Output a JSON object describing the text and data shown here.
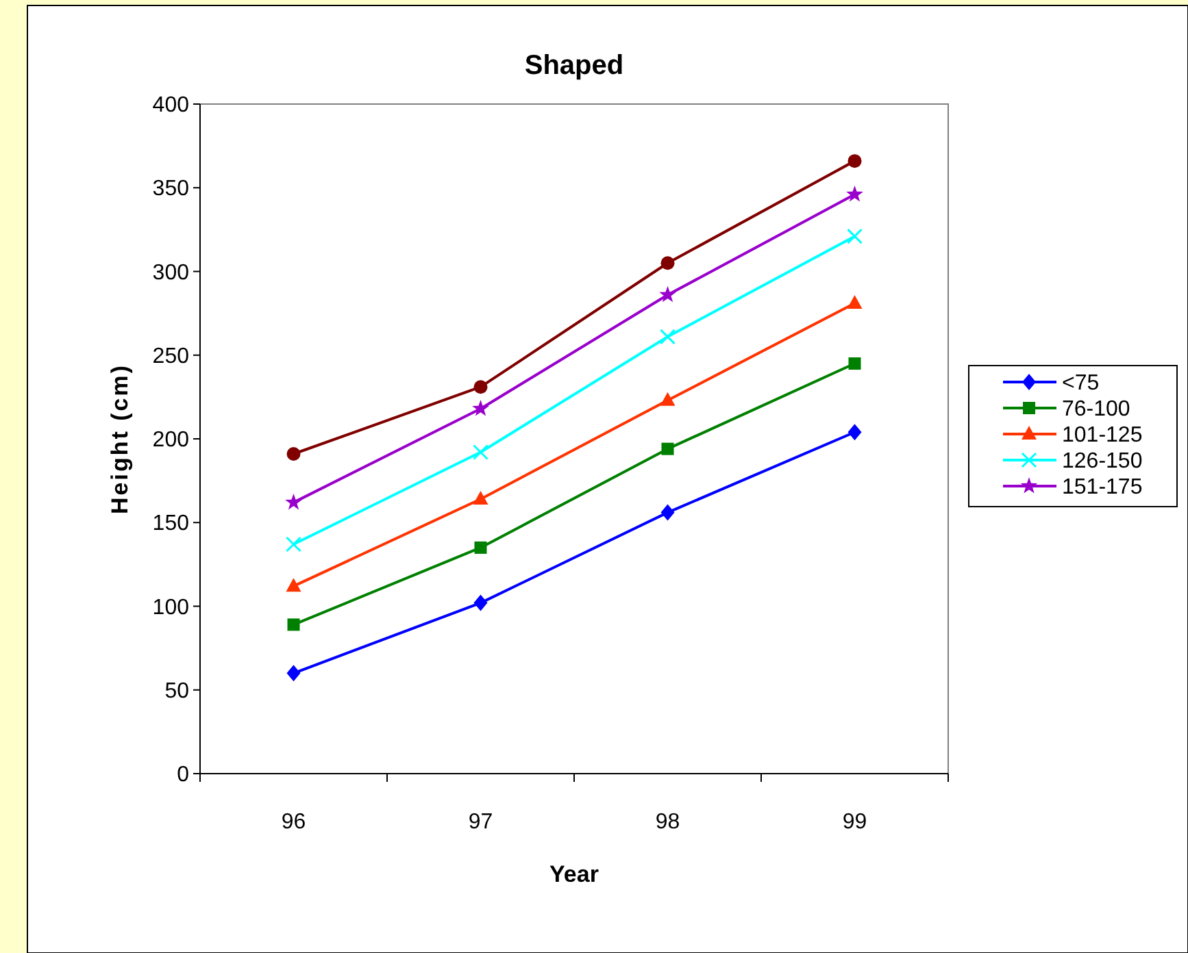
{
  "chart_data": {
    "type": "line",
    "title": "Shaped",
    "xlabel": "Year",
    "ylabel": "Height (cm)",
    "categories": [
      "96",
      "97",
      "98",
      "99"
    ],
    "ylim": [
      0,
      400
    ],
    "yticks": [
      0,
      50,
      100,
      150,
      200,
      250,
      300,
      350,
      400
    ],
    "grid": false,
    "legend": "right",
    "series": [
      {
        "name": "<75",
        "color": "#0000ff",
        "marker": "diamond",
        "values": [
          60,
          102,
          156,
          204
        ]
      },
      {
        "name": "76-100",
        "color": "#008000",
        "marker": "square",
        "values": [
          89,
          135,
          194,
          245
        ]
      },
      {
        "name": "101-125",
        "color": "#ff3300",
        "marker": "triangle",
        "values": [
          112,
          164,
          223,
          281
        ]
      },
      {
        "name": "126-150",
        "color": "#00ffff",
        "marker": "cross",
        "values": [
          137,
          192,
          261,
          321
        ]
      },
      {
        "name": "151-175",
        "color": "#9900cc",
        "marker": "star",
        "values": [
          162,
          218,
          286,
          346
        ]
      },
      {
        "color": "#800000",
        "marker": "circle",
        "values": [
          191,
          231,
          305,
          366
        ]
      }
    ]
  }
}
